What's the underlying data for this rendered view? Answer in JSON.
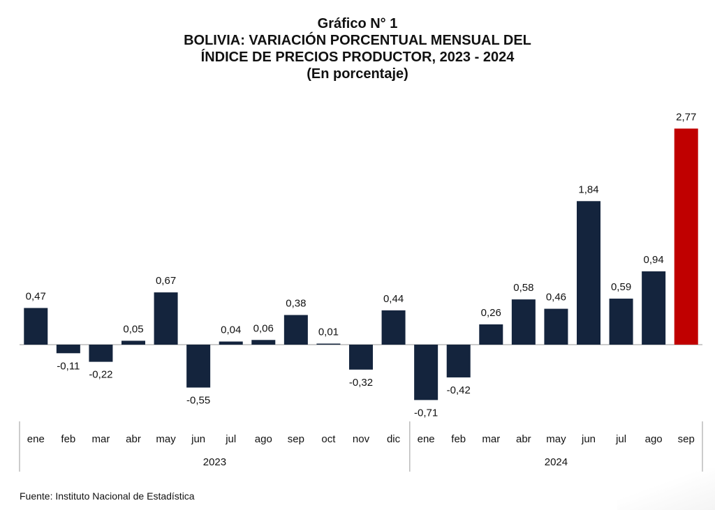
{
  "title": {
    "line1": "Gráfico N° 1",
    "line2": "BOLIVIA: VARIACIÓN PORCENTUAL MENSUAL DEL",
    "line3": "ÍNDICE DE PRECIOS PRODUCTOR, 2023 - 2024",
    "line4": "(En porcentaje)"
  },
  "source": "Fuente: Instituto Nacional de Estadística",
  "colors": {
    "bar": "#14243d",
    "highlight": "#c00000",
    "axis": "#9a9a9a",
    "text": "#111111"
  },
  "chart_data": {
    "type": "bar",
    "categories": [
      "ene",
      "feb",
      "mar",
      "abr",
      "may",
      "jun",
      "jul",
      "ago",
      "sep",
      "oct",
      "nov",
      "dic",
      "ene",
      "feb",
      "mar",
      "abr",
      "may",
      "jun",
      "jul",
      "ago",
      "sep"
    ],
    "groups": [
      {
        "label": "2023",
        "start": 0,
        "count": 12
      },
      {
        "label": "2024",
        "start": 12,
        "count": 9
      }
    ],
    "values": [
      0.47,
      -0.11,
      -0.22,
      0.05,
      0.67,
      -0.55,
      0.04,
      0.06,
      0.38,
      0.01,
      -0.32,
      0.44,
      -0.71,
      -0.42,
      0.26,
      0.58,
      0.46,
      1.84,
      0.59,
      0.94,
      2.77
    ],
    "value_labels": [
      "0,47",
      "-0,11",
      "-0,22",
      "0,05",
      "0,67",
      "-0,55",
      "0,04",
      "0,06",
      "0,38",
      "0,01",
      "-0,32",
      "0,44",
      "-0,71",
      "-0,42",
      "0,26",
      "0,58",
      "0,46",
      "1,84",
      "0,59",
      "0,94",
      "2,77"
    ],
    "highlight_index": 20,
    "ylim": [
      -0.75,
      2.85
    ],
    "grid": false,
    "legend": "none"
  }
}
